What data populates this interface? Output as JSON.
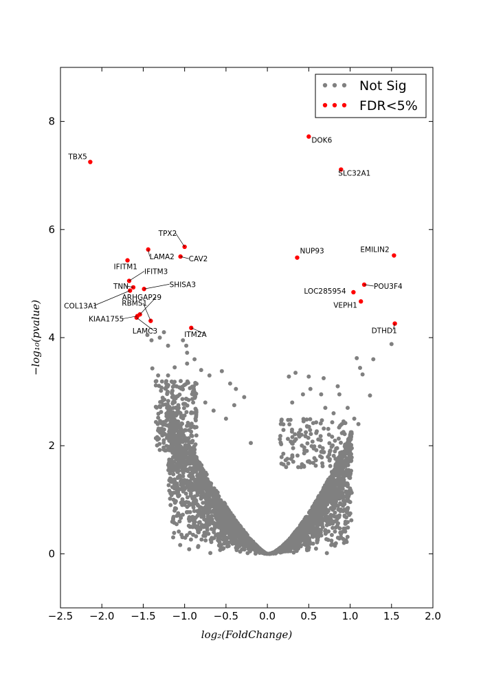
{
  "chart_data": {
    "type": "scatter",
    "title": "",
    "xlabel": "log₂(FoldChange)",
    "ylabel": "−log₁₀(pvalue)",
    "xlim": [
      -2.5,
      2.0
    ],
    "ylim": [
      -1.0,
      9.0
    ],
    "xticks": [
      -2.5,
      -2.0,
      -1.5,
      -1.0,
      -0.5,
      0.0,
      0.5,
      1.0,
      1.5,
      2.0
    ],
    "xtick_labels": [
      "−2.5",
      "−2.0",
      "−1.5",
      "−1.0",
      "−0.5",
      "0.0",
      "0.5",
      "1.0",
      "1.5",
      "2.0"
    ],
    "yticks": [
      0,
      2,
      4,
      6,
      8
    ],
    "ytick_labels": [
      "0",
      "2",
      "4",
      "6",
      "8"
    ],
    "grid": false,
    "legend_position": "top-right",
    "series": [
      {
        "name": "Not Sig",
        "color": "#808080",
        "note_values": "dense volcano-shaped cloud of non-significant genes; outer envelope listed",
        "points": [
          [
            -1.39,
            3.43
          ],
          [
            -1.32,
            3.3
          ],
          [
            -1.2,
            3.3
          ],
          [
            -1.12,
            3.45
          ],
          [
            -0.98,
            3.85
          ],
          [
            -0.97,
            3.52
          ],
          [
            -0.88,
            3.6
          ],
          [
            -0.8,
            3.4
          ],
          [
            -0.7,
            3.3
          ],
          [
            -0.55,
            3.38
          ],
          [
            -0.45,
            3.15
          ],
          [
            -0.38,
            3.05
          ],
          [
            -0.28,
            2.9
          ],
          [
            -0.2,
            2.05
          ],
          [
            -1.45,
            4.05
          ],
          [
            -1.4,
            3.95
          ],
          [
            -1.3,
            4.0
          ],
          [
            -1.25,
            4.1
          ],
          [
            -1.2,
            3.85
          ],
          [
            -1.02,
            3.95
          ],
          [
            -0.97,
            3.72
          ],
          [
            -1.1,
            3.1
          ],
          [
            -1.15,
            2.9
          ],
          [
            -0.9,
            3.0
          ],
          [
            -0.75,
            2.8
          ],
          [
            -0.65,
            2.65
          ],
          [
            -0.5,
            2.5
          ],
          [
            -0.4,
            2.75
          ],
          [
            0.26,
            3.28
          ],
          [
            0.34,
            3.35
          ],
          [
            0.5,
            3.28
          ],
          [
            0.43,
            2.95
          ],
          [
            0.3,
            2.8
          ],
          [
            0.52,
            3.05
          ],
          [
            0.65,
            2.95
          ],
          [
            0.68,
            3.25
          ],
          [
            0.85,
            3.1
          ],
          [
            0.87,
            2.95
          ],
          [
            0.97,
            2.7
          ],
          [
            1.08,
            3.62
          ],
          [
            1.12,
            3.44
          ],
          [
            1.15,
            3.32
          ],
          [
            1.28,
            3.6
          ],
          [
            1.24,
            2.93
          ],
          [
            1.5,
            3.88
          ],
          [
            0.7,
            2.7
          ],
          [
            0.8,
            2.6
          ],
          [
            0.92,
            2.45
          ],
          [
            1.0,
            2.2
          ],
          [
            1.1,
            2.4
          ],
          [
            1.05,
            2.5
          ]
        ]
      },
      {
        "name": "FDR<5%",
        "color": "#ff0000",
        "points": [
          {
            "gene": "TBX5",
            "x": -2.14,
            "y": 7.25
          },
          {
            "gene": "DOK6",
            "x": 0.5,
            "y": 7.72
          },
          {
            "gene": "SLC32A1",
            "x": 0.89,
            "y": 7.11
          },
          {
            "gene": "TPX2",
            "x": -1.0,
            "y": 5.68
          },
          {
            "gene": "CAV2",
            "x": -1.05,
            "y": 5.5
          },
          {
            "gene": "LAMA2",
            "x": -1.44,
            "y": 5.63
          },
          {
            "gene": "IFITM1",
            "x": -1.69,
            "y": 5.43
          },
          {
            "gene": "EMILIN2",
            "x": 1.53,
            "y": 5.52
          },
          {
            "gene": "NUP93",
            "x": 0.36,
            "y": 5.48
          },
          {
            "gene": "IFITM3",
            "x": -1.67,
            "y": 5.05
          },
          {
            "gene": "TNN",
            "x": -1.62,
            "y": 4.93
          },
          {
            "gene": "SHISA3",
            "x": -1.49,
            "y": 4.9
          },
          {
            "gene": "COL13A1",
            "x": -1.66,
            "y": 4.87
          },
          {
            "gene": "POU3F4",
            "x": 1.17,
            "y": 4.98
          },
          {
            "gene": "LOC285954",
            "x": 1.04,
            "y": 4.84
          },
          {
            "gene": "VEPH1",
            "x": 1.13,
            "y": 4.67
          },
          {
            "gene": "ARHGAP29",
            "x": -1.54,
            "y": 4.43
          },
          {
            "gene": "KIAA1755",
            "x": -1.57,
            "y": 4.4
          },
          {
            "gene": "LAMC3",
            "x": -1.58,
            "y": 4.37
          },
          {
            "gene": "RBMS1",
            "x": -1.41,
            "y": 4.31
          },
          {
            "gene": "ITM2A",
            "x": -0.92,
            "y": 4.18
          },
          {
            "gene": "DTHD1",
            "x": 1.54,
            "y": 4.26
          }
        ]
      }
    ]
  }
}
